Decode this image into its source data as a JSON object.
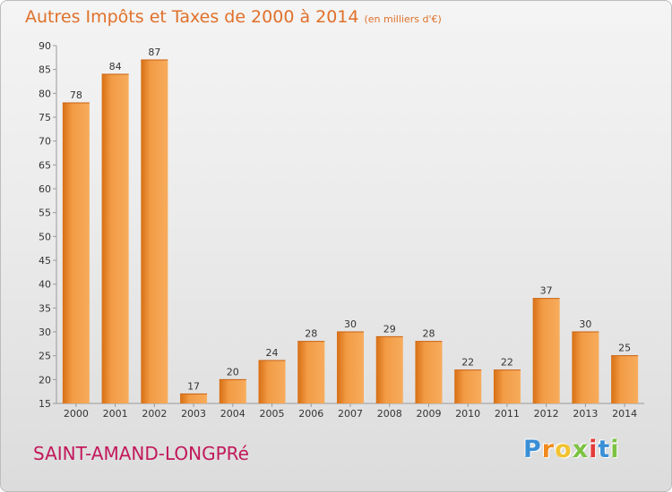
{
  "header": {
    "title": "Autres Impôts et Taxes de 2000 à 2014",
    "unit": "(en milliers d'€)"
  },
  "commune": "SAINT-AMAND-LONGPRé",
  "logo": {
    "letters": [
      "P",
      "r",
      "o",
      "x",
      "i",
      "t",
      "i"
    ],
    "colors": [
      "#3a8fd6",
      "#f08a1e",
      "#f2c230",
      "#7cc242",
      "#e23b3b",
      "#3a8fd6",
      "#7cc242"
    ]
  },
  "colors": {
    "title": "#e0702a",
    "commune": "#c2185b",
    "bar_light": "#f7ac5c",
    "bar_dark": "#d76f14"
  },
  "chart_data": {
    "type": "bar",
    "title": "Autres Impôts et Taxes de 2000 à 2014",
    "xlabel": "",
    "ylabel": "",
    "categories": [
      "2000",
      "2001",
      "2002",
      "2003",
      "2004",
      "2005",
      "2006",
      "2007",
      "2008",
      "2009",
      "2010",
      "2011",
      "2012",
      "2013",
      "2014"
    ],
    "values": [
      78,
      84,
      87,
      17,
      20,
      24,
      28,
      30,
      29,
      28,
      22,
      22,
      37,
      30,
      25
    ],
    "ylim": [
      15,
      90
    ],
    "yticks": [
      15,
      20,
      25,
      30,
      35,
      40,
      45,
      50,
      55,
      60,
      65,
      70,
      75,
      80,
      85,
      90
    ],
    "grid": false,
    "data_labels": true
  }
}
